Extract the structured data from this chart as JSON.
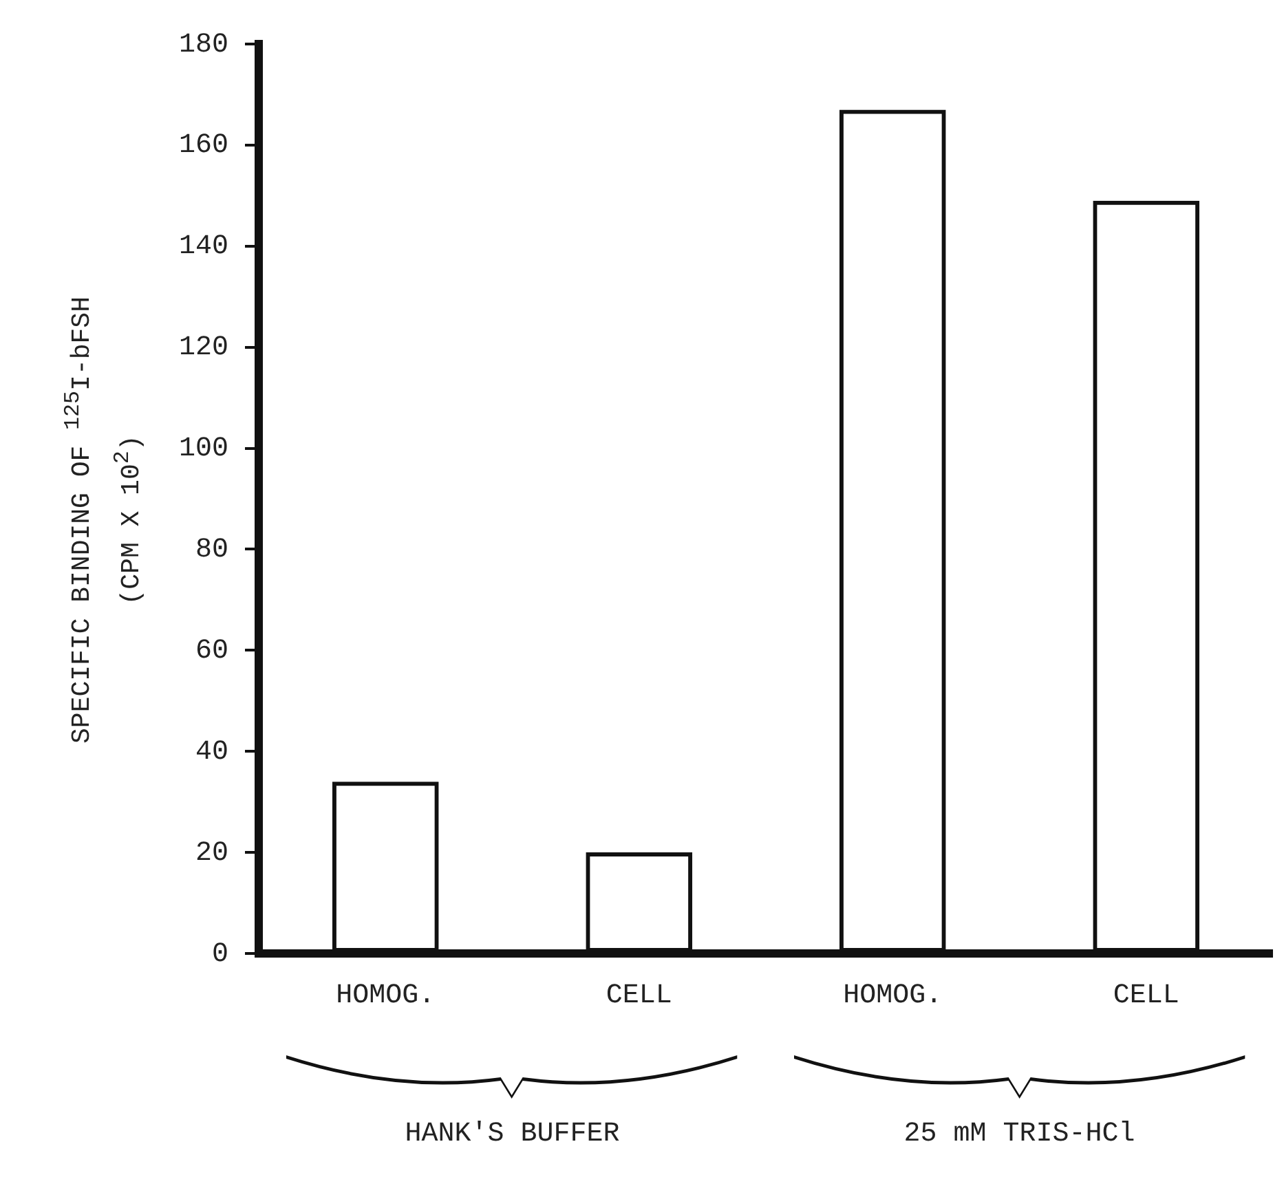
{
  "chart_data": {
    "type": "bar",
    "ylabel": "SPECIFIC BINDING OF $^{125}$I-bFSH (CPM X 10$^{2}$)",
    "categories": [
      "HOMOG.",
      "CELL",
      "HOMOG.",
      "CELL"
    ],
    "values": [
      34,
      20,
      167,
      149
    ],
    "color": "#111111",
    "ylim": [
      0,
      180
    ],
    "yticks": [
      0,
      20,
      40,
      60,
      80,
      100,
      120,
      140,
      160,
      180
    ],
    "grid": false,
    "annotations": [
      "HANK'S BUFFER",
      "25 mM TRIS-HCl"
    ]
  }
}
